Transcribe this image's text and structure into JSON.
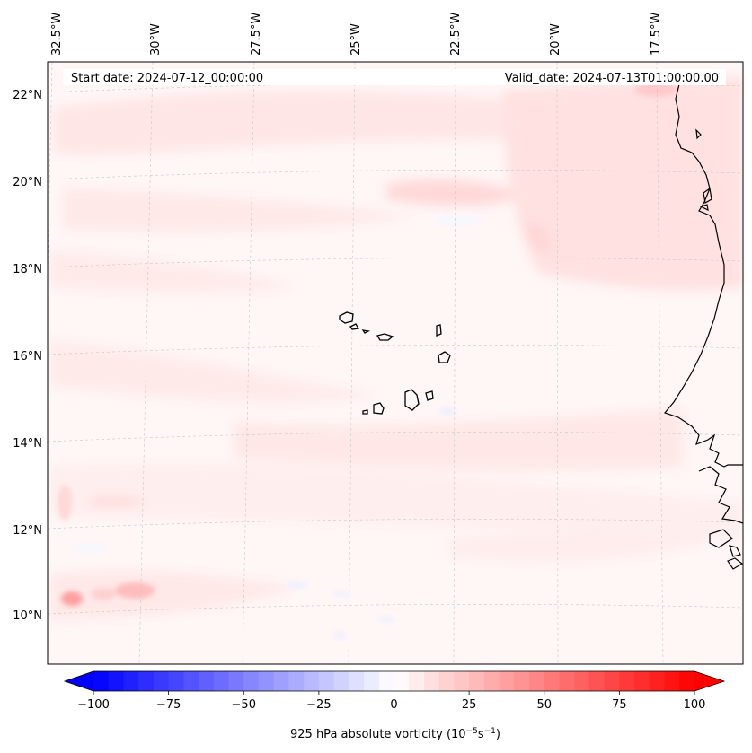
{
  "header": {
    "start_date": "Start date: 2024-07-12_00:00:00",
    "valid_date": "Valid_date: 2024-07-13T01:00:00.00"
  },
  "longitude_labels": [
    "32.5°W",
    "30°W",
    "27.5°W",
    "25°W",
    "22.5°W",
    "20°W",
    "17.5°W"
  ],
  "latitude_labels": [
    "22°N",
    "20°N",
    "18°N",
    "16°N",
    "14°N",
    "12°N",
    "10°N"
  ],
  "colorbar": {
    "label": "925 hPa absolute vorticity (10",
    "label_exp1": "−5",
    "label_mid": "s",
    "label_exp2": "−1",
    "label_end": ")",
    "ticks": [
      "−100",
      "−75",
      "−50",
      "−25",
      "0",
      "25",
      "50",
      "75",
      "100"
    ],
    "range": [
      -100,
      100
    ],
    "colors": {
      "negative": "#0000ff",
      "zero": "#ffffff",
      "positive": "#ff0000"
    }
  }
}
